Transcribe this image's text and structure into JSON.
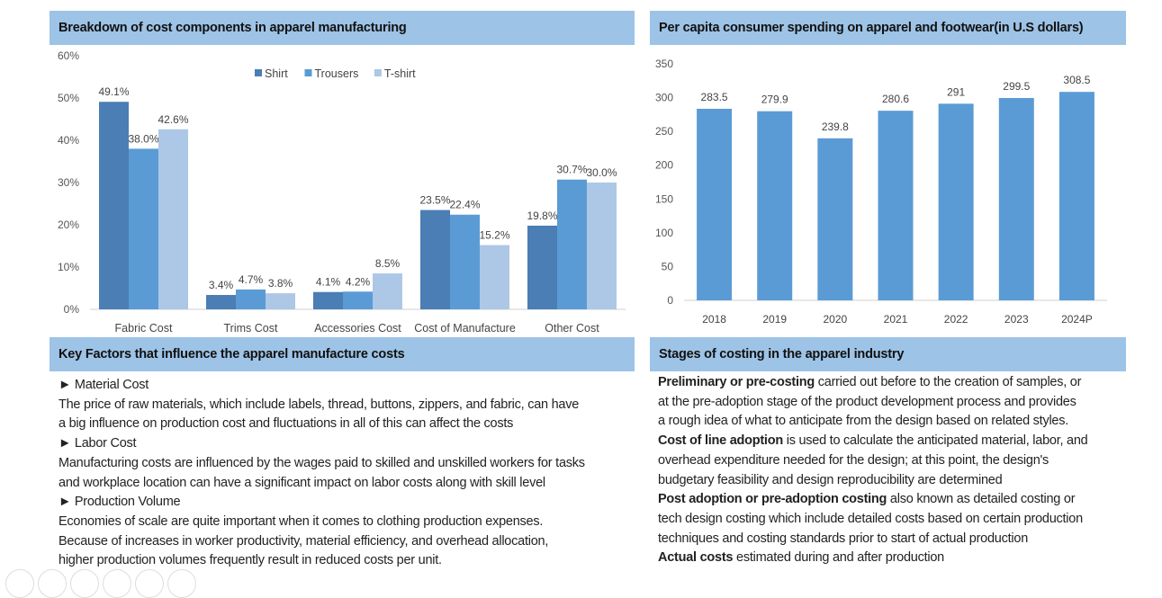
{
  "left_chart": {
    "header": "Breakdown of cost components in apparel manufacturing"
  },
  "right_chart": {
    "header": "Per capita consumer spending on apparel and footwear(in U.S dollars)"
  },
  "factors": {
    "header": "Key Factors that influence the apparel manufacture costs",
    "items": [
      {
        "title": "► Material Cost",
        "lines": [
          "The price of raw materials, which include labels, thread, buttons, zippers, and fabric, can have",
          "a big influence on production cost and fluctuations in all of this can affect the costs"
        ]
      },
      {
        "title": "► Labor Cost",
        "lines": [
          "Manufacturing costs are influenced by the wages paid to skilled and unskilled workers for tasks",
          "and workplace location can have a significant impact on labor costs along with skill level"
        ]
      },
      {
        "title": "► Production Volume",
        "lines": [
          "Economies of scale are quite important when it comes to clothing production expenses.",
          "Because of increases in worker productivity, material efficiency, and overhead allocation,",
          "higher production volumes frequently result in reduced costs per unit."
        ]
      }
    ]
  },
  "stages": {
    "header": "Stages of costing in the apparel industry",
    "items": [
      {
        "bold": "Preliminary or pre-costing",
        "lines": [
          " carried out before to the creation of samples, or",
          "at the pre-adoption stage of the product development process and provides",
          "a rough idea of what to anticipate from the design based on related styles."
        ]
      },
      {
        "bold": "Cost of line adoption",
        "lines": [
          " is used to calculate the anticipated material, labor, and",
          "overhead expenditure needed for the design; at this point, the design's",
          "budgetary feasibility and design reproducibility are determined"
        ]
      },
      {
        "bold": "Post adoption or pre-adoption costing",
        "lines": [
          " also known as detailed costing or",
          "tech design costing which include detailed costs based on certain production",
          "techniques and costing standards prior to start of actual production"
        ]
      },
      {
        "bold": "Actual costs",
        "lines": [
          " estimated during and after production"
        ]
      }
    ]
  },
  "chart_data": [
    {
      "type": "bar",
      "title": "Breakdown of cost components in apparel manufacturing",
      "categories": [
        "Fabric Cost",
        "Trims Cost",
        "Accessories Cost",
        "Cost of Manufacture",
        "Other Cost"
      ],
      "series": [
        {
          "name": "Shirt",
          "values": [
            49.1,
            3.4,
            4.1,
            23.5,
            19.8
          ],
          "color": "#4a7eb4"
        },
        {
          "name": "Trousers",
          "values": [
            38.0,
            4.7,
            4.2,
            22.4,
            30.7
          ],
          "color": "#5b9bd5"
        },
        {
          "name": "T-shirt",
          "values": [
            42.6,
            3.8,
            8.5,
            15.2,
            30.0
          ],
          "color": "#adc7e6"
        }
      ],
      "yticks": [
        "0%",
        "10%",
        "20%",
        "30%",
        "40%",
        "50%",
        "60%"
      ],
      "ylim": [
        0,
        60
      ],
      "unit": "%",
      "legend": "top-center",
      "grid": false
    },
    {
      "type": "bar",
      "title": "Per capita consumer spending on apparel and footwear(in U.S dollars)",
      "categories": [
        "2018",
        "2019",
        "2020",
        "2021",
        "2022",
        "2023",
        "2024P"
      ],
      "values": [
        283.5,
        279.9,
        239.8,
        280.6,
        291,
        299.5,
        308.5
      ],
      "labels": [
        "283.5",
        "279.9",
        "239.8",
        "280.6",
        "291",
        "299.5",
        "308.5"
      ],
      "color": "#5b9bd5",
      "yticks": [
        "0",
        "50",
        "100",
        "150",
        "200",
        "250",
        "300",
        "350"
      ],
      "ylim": [
        0,
        350
      ],
      "grid": false
    }
  ]
}
